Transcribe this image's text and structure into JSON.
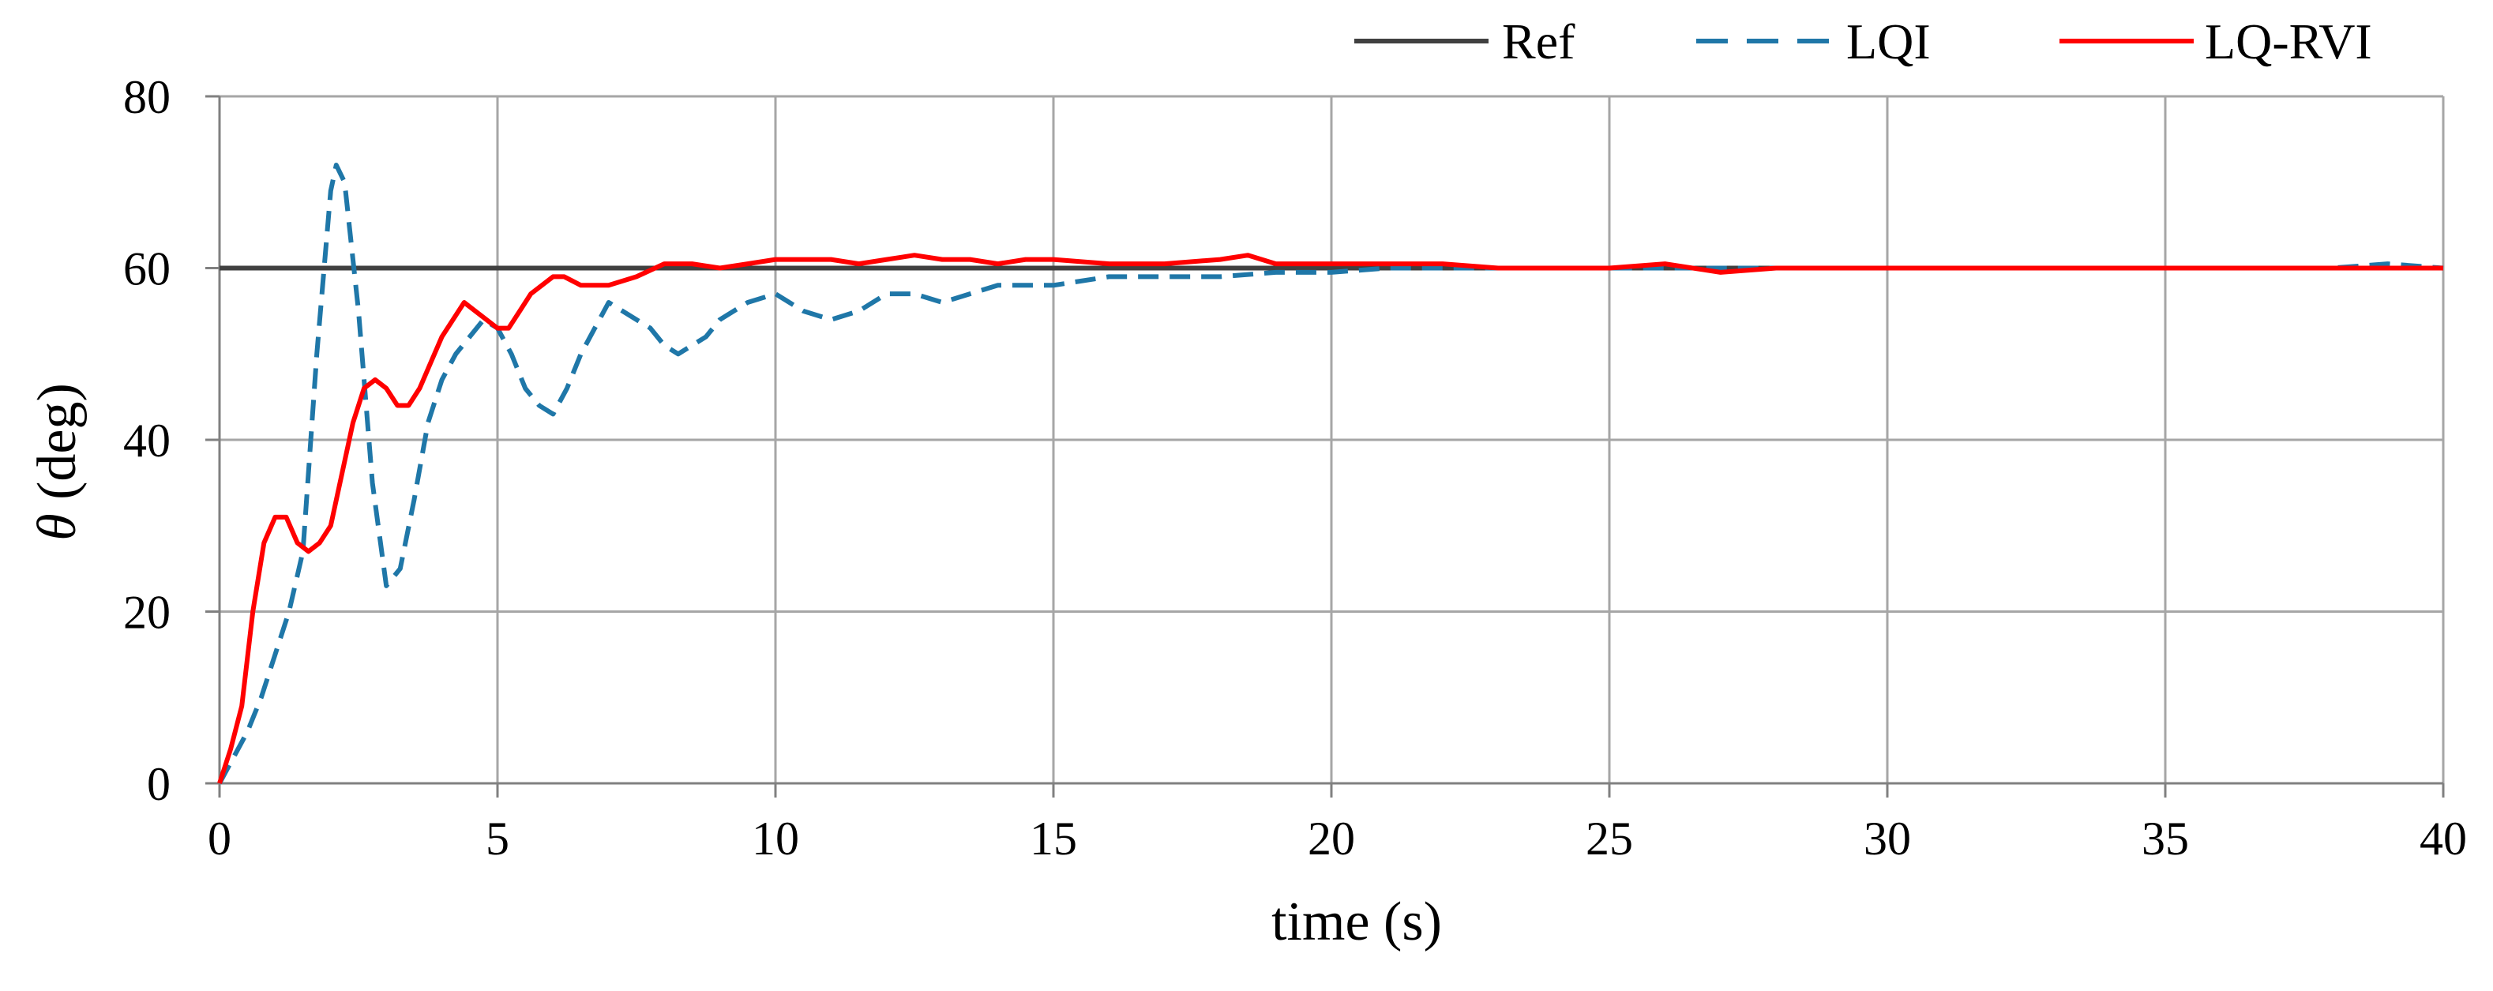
{
  "chart_data": {
    "type": "line",
    "title": "",
    "xlabel": "time (s)",
    "ylabel_symbol": "θ",
    "ylabel_unit": " (deg)",
    "xlim": [
      0,
      40
    ],
    "ylim": [
      0,
      80
    ],
    "xticks": [
      0,
      5,
      10,
      15,
      20,
      25,
      30,
      35,
      40
    ],
    "yticks": [
      0,
      20,
      40,
      60,
      80
    ],
    "grid": true,
    "legend_position": "top-right",
    "series": [
      {
        "name": "Ref",
        "color": "#404040",
        "dash": "solid",
        "x": [
          0,
          40
        ],
        "y": [
          60,
          60
        ]
      },
      {
        "name": "LQI",
        "color": "#1F77A8",
        "dash": "dashed",
        "x": [
          0,
          0.25,
          0.5,
          0.75,
          1.0,
          1.25,
          1.5,
          1.75,
          2.0,
          2.1,
          2.25,
          2.5,
          2.75,
          3.0,
          3.25,
          3.5,
          3.75,
          4.0,
          4.25,
          4.5,
          4.75,
          5.0,
          5.25,
          5.5,
          5.75,
          6.0,
          6.25,
          6.5,
          6.75,
          7.0,
          7.25,
          7.5,
          7.75,
          8.0,
          8.25,
          8.5,
          8.75,
          9.0,
          9.5,
          10.0,
          10.5,
          11.0,
          11.5,
          12.0,
          12.5,
          13.0,
          13.5,
          14.0,
          14.5,
          15.0,
          16.0,
          17.0,
          18.0,
          19.0,
          20.0,
          21.0,
          22.0,
          23.0,
          24.0,
          25.0,
          26.0,
          27.0,
          28.0,
          29.0,
          30.0,
          31.0,
          32.0,
          33.0,
          34.0,
          35.0,
          36.0,
          37.0,
          38.0,
          39.0,
          40.0
        ],
        "y": [
          0,
          3,
          6,
          10,
          15,
          20,
          27,
          50,
          69,
          72,
          70,
          55,
          35,
          23,
          25,
          33,
          42,
          47,
          50,
          52,
          54,
          53,
          50,
          46,
          44,
          43,
          46,
          50,
          53,
          56,
          55,
          54,
          53,
          51,
          50,
          51,
          52,
          54,
          56,
          57,
          55,
          54,
          55,
          57,
          57,
          56,
          57,
          58,
          58,
          58,
          59,
          59,
          59,
          59.5,
          59.5,
          60,
          60,
          60,
          60,
          60,
          60,
          60,
          60,
          60,
          60,
          60,
          60,
          60,
          60,
          60,
          60,
          60,
          60,
          60.5,
          60
        ]
      },
      {
        "name": "LQ-RVI",
        "color": "#FF0000",
        "dash": "solid",
        "x": [
          0,
          0.2,
          0.4,
          0.6,
          0.8,
          1.0,
          1.2,
          1.4,
          1.6,
          1.8,
          2.0,
          2.2,
          2.4,
          2.6,
          2.8,
          3.0,
          3.2,
          3.4,
          3.6,
          3.8,
          4.0,
          4.2,
          4.4,
          4.6,
          4.8,
          5.0,
          5.2,
          5.4,
          5.6,
          5.8,
          6.0,
          6.2,
          6.5,
          7.0,
          7.5,
          8.0,
          8.5,
          9.0,
          9.5,
          10.0,
          10.5,
          11.0,
          11.5,
          12.0,
          12.5,
          13.0,
          13.5,
          14.0,
          14.5,
          15.0,
          16.0,
          17.0,
          18.0,
          18.5,
          19.0,
          20.0,
          21.0,
          22.0,
          23.0,
          24.0,
          25.0,
          26.0,
          27.0,
          28.0,
          29.0,
          30.0,
          31.0,
          32.0,
          33.0,
          34.0,
          35.0,
          36.0,
          37.0,
          38.0,
          39.0,
          40.0
        ],
        "y": [
          0,
          4,
          9,
          20,
          28,
          31,
          31,
          28,
          27,
          28,
          30,
          36,
          42,
          46,
          47,
          46,
          44,
          44,
          46,
          49,
          52,
          54,
          56,
          55,
          54,
          53,
          53,
          55,
          57,
          58,
          59,
          59,
          58,
          58,
          59,
          60.5,
          60.5,
          60,
          60.5,
          61,
          61,
          61,
          60.5,
          61,
          61.5,
          61,
          61,
          60.5,
          61,
          61,
          60.5,
          60.5,
          61,
          61.5,
          60.5,
          60.5,
          60.5,
          60.5,
          60,
          60,
          60,
          60.5,
          59.5,
          60,
          60,
          60,
          60,
          60,
          60,
          60,
          60,
          60,
          60,
          60,
          60,
          60
        ]
      }
    ]
  }
}
